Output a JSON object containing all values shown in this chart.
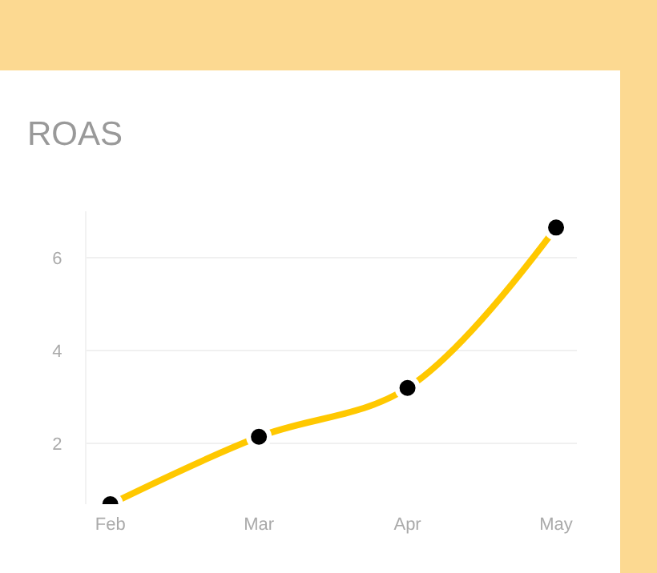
{
  "chart_data": {
    "type": "line",
    "title": "ROAS",
    "categories": [
      "Feb",
      "Mar",
      "Apr",
      "May"
    ],
    "series": [
      {
        "color": "#ffc800",
        "values": [
          0.7,
          2.15,
          3.2,
          6.65
        ]
      }
    ],
    "ylim": [
      0.7,
      7.0
    ],
    "yticks": [
      2,
      4,
      6
    ],
    "grid": "y",
    "marker": "circle",
    "line_style": "solid"
  }
}
